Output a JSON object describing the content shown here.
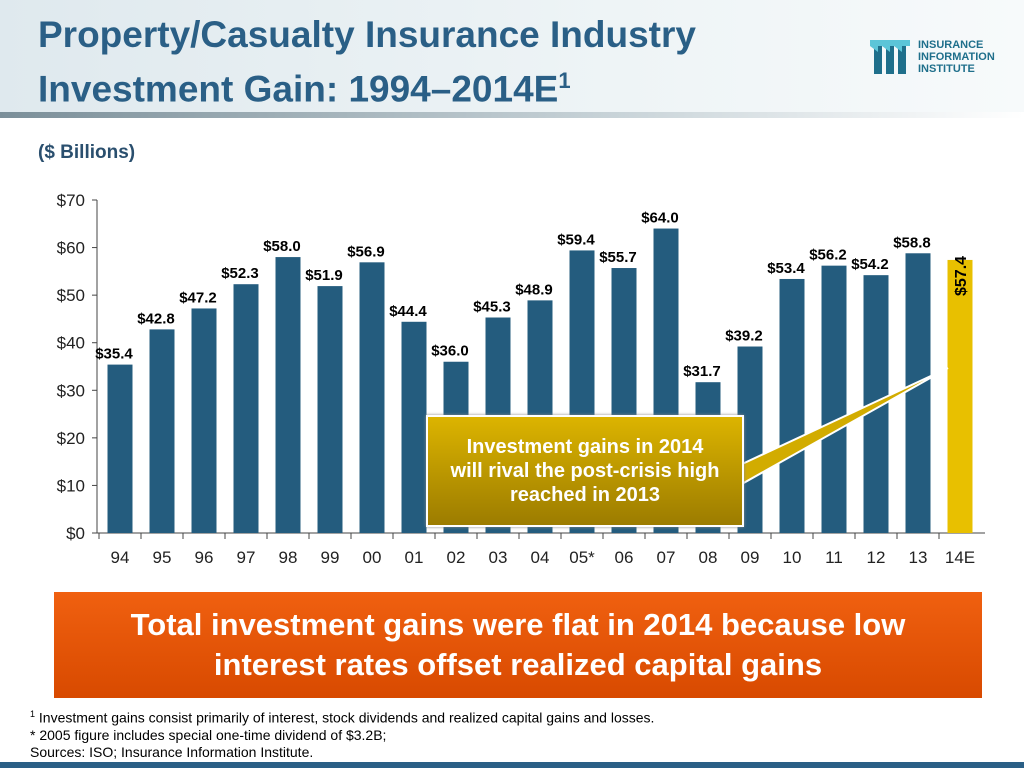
{
  "header": {
    "title_line1": "Property/Casualty Insurance Industry",
    "title_line2": "Investment Gain: 1994–2014E",
    "title_sup": "1",
    "logo_lines": [
      "INSURANCE",
      "INFORMATION",
      "INSTITUTE"
    ]
  },
  "chart_data": {
    "type": "bar",
    "ylabel": "($ Billions)",
    "ylim": [
      0,
      70
    ],
    "yticks": [
      0,
      10,
      20,
      30,
      40,
      50,
      60,
      70
    ],
    "ytick_labels": [
      "$0",
      "$10",
      "$20",
      "$30",
      "$40",
      "$50",
      "$60",
      "$70"
    ],
    "categories": [
      "94",
      "95",
      "96",
      "97",
      "98",
      "99",
      "00",
      "01",
      "02",
      "03",
      "04",
      "05*",
      "06",
      "07",
      "08",
      "09",
      "10",
      "11",
      "12",
      "13",
      "14E"
    ],
    "values": [
      35.4,
      42.8,
      47.2,
      52.3,
      58.0,
      51.9,
      56.9,
      44.4,
      36.0,
      45.3,
      48.9,
      59.4,
      55.7,
      64.0,
      31.7,
      39.2,
      53.4,
      56.2,
      54.2,
      58.8,
      57.4
    ],
    "data_labels": [
      "$35.4",
      "$42.8",
      "$47.2",
      "$52.3",
      "$58.0",
      "$51.9",
      "$56.9",
      "$44.4",
      "$36.0",
      "$45.3",
      "$48.9",
      "$59.4",
      "$55.7",
      "$64.0",
      "$31.7",
      "$39.2",
      "$53.4",
      "$56.2",
      "$54.2",
      "$58.8",
      "$57.4"
    ],
    "colors": {
      "bar": "#245c7e",
      "highlight": "#e8c000"
    },
    "highlight_category": "14E",
    "grid": false,
    "annotation": "Investment gains in 2014 will rival the post-crisis high reached in 2013"
  },
  "banner": "Total investment gains were flat in 2014 because low interest rates offset realized capital gains",
  "notes": {
    "sup": "1",
    "line1": " Investment gains consist primarily of interest, stock dividends and realized capital gains and losses.",
    "line2": "* 2005 figure includes special one-time dividend of $3.2B;",
    "line3": "Sources: ISO; Insurance Information Institute."
  }
}
